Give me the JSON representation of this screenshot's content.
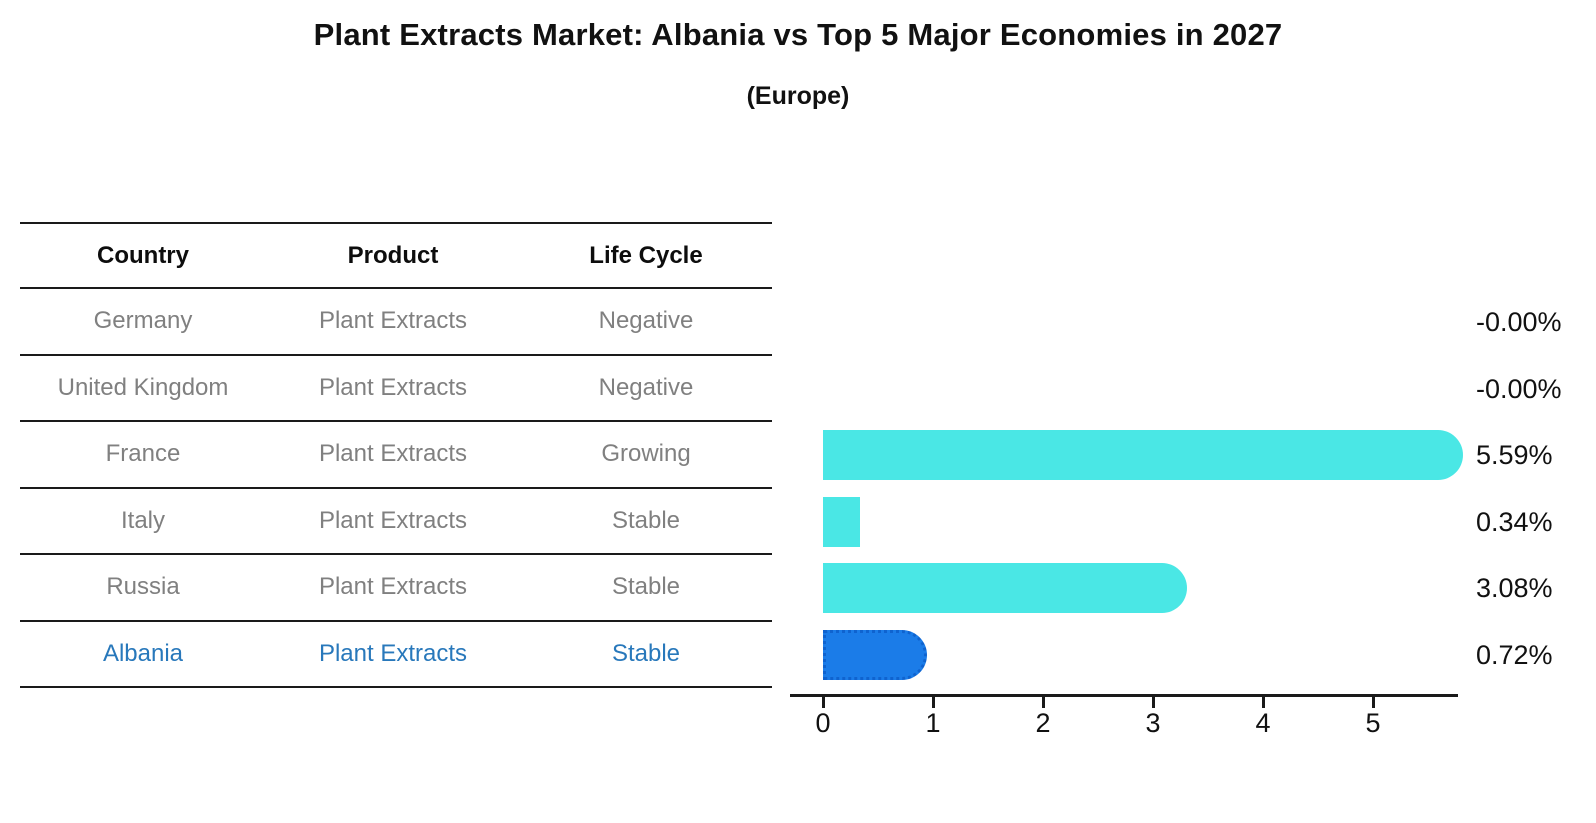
{
  "title": "Plant Extracts Market: Albania vs Top 5 Major Economies in 2027",
  "subtitle": "(Europe)",
  "table": {
    "headers": [
      "Country",
      "Product",
      "Life Cycle"
    ],
    "rows": [
      {
        "country": "Germany",
        "product": "Plant Extracts",
        "life_cycle": "Negative",
        "highlight": false
      },
      {
        "country": "United Kingdom",
        "product": "Plant Extracts",
        "life_cycle": "Negative",
        "highlight": false
      },
      {
        "country": "France",
        "product": "Plant Extracts",
        "life_cycle": "Growing",
        "highlight": false
      },
      {
        "country": "Italy",
        "product": "Plant Extracts",
        "life_cycle": "Stable",
        "highlight": false
      },
      {
        "country": "Russia",
        "product": "Plant Extracts",
        "life_cycle": "Stable",
        "highlight": false
      },
      {
        "country": "Albania",
        "product": "Plant Extracts",
        "life_cycle": "Stable",
        "highlight": true
      }
    ]
  },
  "chart_data": {
    "type": "bar",
    "orientation": "horizontal",
    "title": "Plant Extracts Market: Albania vs Top 5 Major Economies in 2027",
    "subtitle": "(Europe)",
    "categories": [
      "Germany",
      "United Kingdom",
      "France",
      "Italy",
      "Russia",
      "Albania"
    ],
    "values": [
      -0.0,
      -0.0,
      5.59,
      0.34,
      3.08,
      0.72
    ],
    "value_labels": [
      "-0.00%",
      "-0.00%",
      "5.59%",
      "0.34%",
      "3.08%",
      "0.72%"
    ],
    "x_ticks": [
      "0",
      "1",
      "2",
      "3",
      "4",
      "5"
    ],
    "xlim": [
      0,
      6
    ],
    "grid": false,
    "legend": "none",
    "bar_color": "#4ae7e5",
    "highlight_color": "#1b7ce8",
    "highlight_index": 5
  }
}
